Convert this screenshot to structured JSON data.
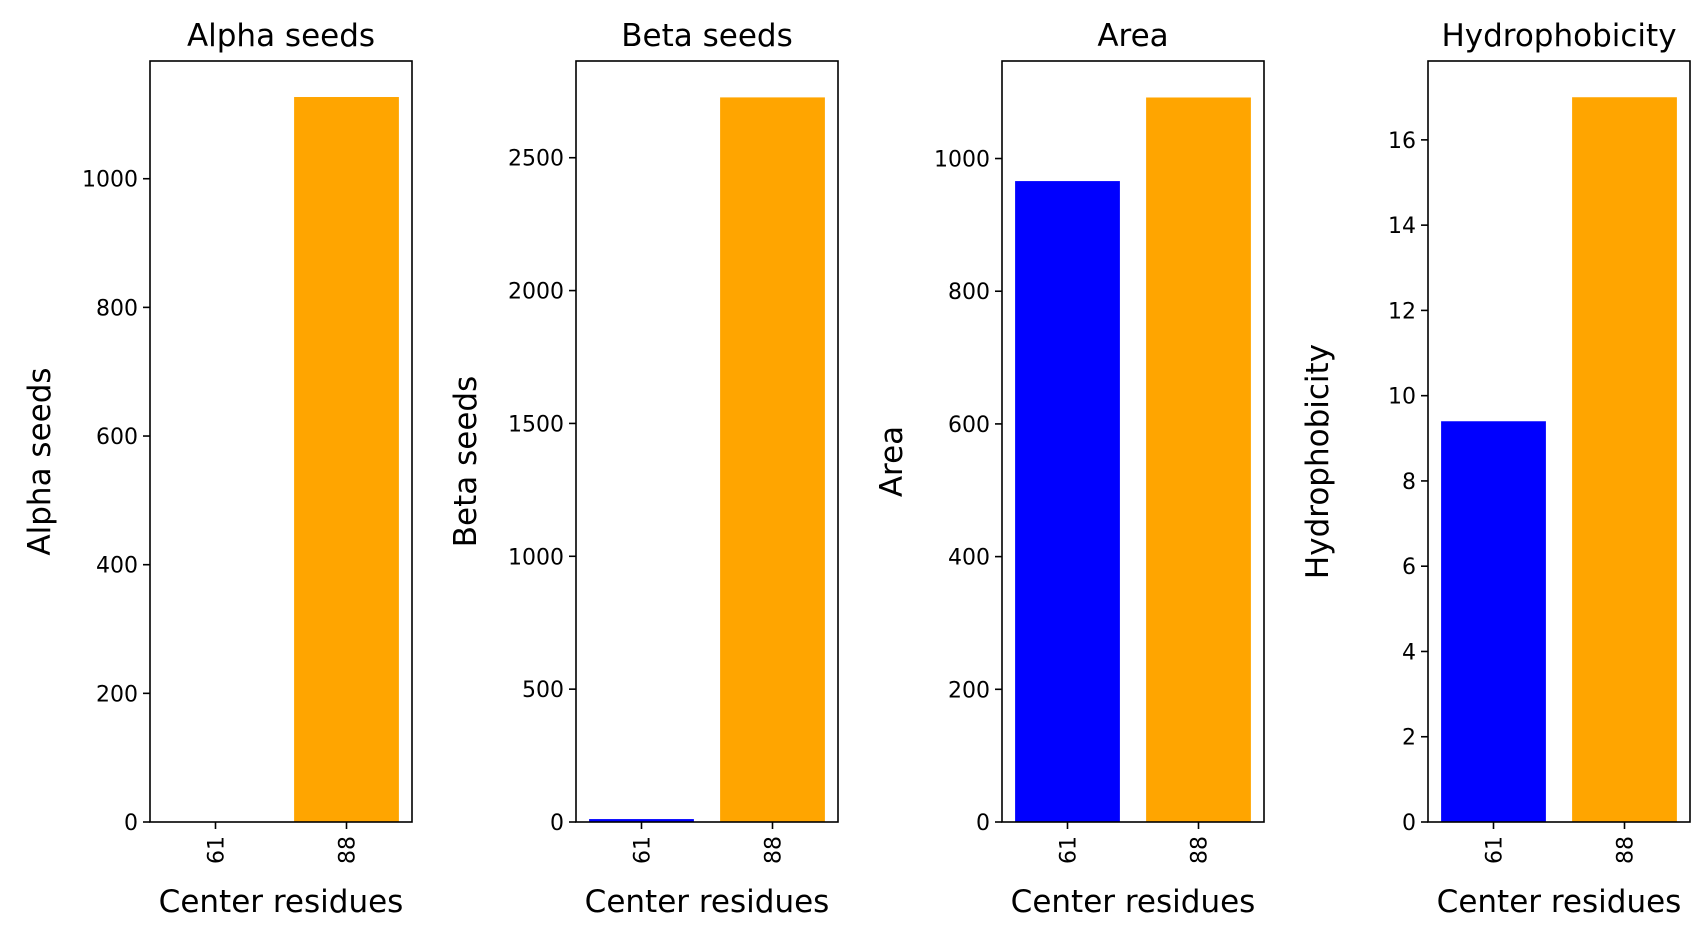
{
  "chart_data": [
    {
      "type": "bar",
      "title": "Alpha seeds",
      "xlabel": "Center residues",
      "ylabel": "Alpha seeds",
      "categories": [
        "61",
        "88"
      ],
      "values": [
        0,
        1127
      ],
      "colors": [
        "#0000ff",
        "#ffa500"
      ],
      "ylim": [
        0,
        1183
      ],
      "yticks": [
        0,
        200,
        400,
        600,
        800,
        1000
      ],
      "grid": false
    },
    {
      "type": "bar",
      "title": "Beta seeds",
      "xlabel": "Center residues",
      "ylabel": "Beta seeds",
      "categories": [
        "61",
        "88"
      ],
      "values": [
        11,
        2727
      ],
      "colors": [
        "#0000ff",
        "#ffa500"
      ],
      "ylim": [
        0,
        2864
      ],
      "yticks": [
        0,
        500,
        1000,
        1500,
        2000,
        2500
      ],
      "grid": false
    },
    {
      "type": "bar",
      "title": "Area",
      "xlabel": "Center residues",
      "ylabel": "Area",
      "categories": [
        "61",
        "88"
      ],
      "values": [
        966,
        1092
      ],
      "colors": [
        "#0000ff",
        "#ffa500"
      ],
      "ylim": [
        0,
        1147
      ],
      "yticks": [
        0,
        200,
        400,
        600,
        800,
        1000
      ],
      "grid": false
    },
    {
      "type": "bar",
      "title": "Hydrophobicity",
      "xlabel": "Center residues",
      "ylabel": "Hydrophobicity",
      "categories": [
        "61",
        "88"
      ],
      "values": [
        9.4,
        17.0
      ],
      "colors": [
        "#0000ff",
        "#ffa500"
      ],
      "ylim": [
        0,
        17.85
      ],
      "yticks": [
        0,
        2,
        4,
        6,
        8,
        10,
        12,
        14,
        16
      ],
      "grid": false
    }
  ]
}
